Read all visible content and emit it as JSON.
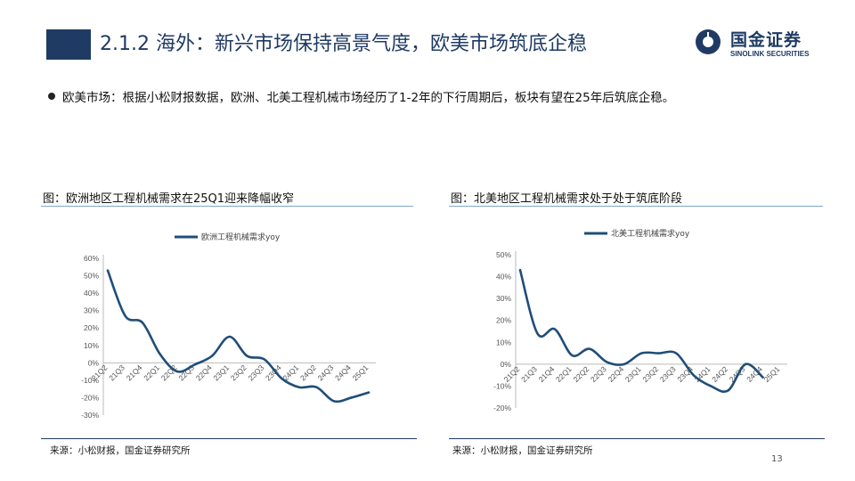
{
  "header": {
    "title": "2.1.2 海外：新兴市场保持高景气度，欧美市场筑底企稳",
    "logo_cn": "国金证券",
    "logo_en": "SINOLINK SECURITIES"
  },
  "bullet": {
    "text": "欧美市场：根据小松财报数据，欧洲、北美工程机械市场经历了1-2年的下行周期后，板块有望在25年后筑底企稳。"
  },
  "figures": [
    {
      "title": "图：欧洲地区工程机械需求在25Q1迎来降幅收窄",
      "source": "来源：小松财报，国金证券研究所"
    },
    {
      "title": "图：北美地区工程机械需求处于处于筑底阶段",
      "source": "来源：小松财报，国金证券研究所"
    }
  ],
  "page_number": "13",
  "colors": {
    "line": "#1f4e79",
    "brand": "#1f3b63"
  },
  "chart_data": [
    {
      "type": "line",
      "categories": [
        "21Q2",
        "21Q3",
        "21Q4",
        "22Q1",
        "22Q2",
        "22Q3",
        "22Q4",
        "23Q1",
        "23Q2",
        "23Q3",
        "23Q4",
        "24Q1",
        "24Q2",
        "24Q3",
        "24Q4",
        "25Q1"
      ],
      "series": [
        {
          "name": "欧洲工程机械需求yoy",
          "values": [
            53,
            27,
            23,
            5,
            -5,
            -1,
            4,
            15,
            4,
            2,
            -9,
            -14,
            -14,
            -22,
            -20,
            -17
          ]
        }
      ],
      "ylim": [
        -30,
        60
      ],
      "yticks": [
        "60%",
        "50%",
        "40%",
        "30%",
        "20%",
        "10%",
        "0%",
        "-10%",
        "-20%",
        "-30%"
      ],
      "legend": "top",
      "grid": false
    },
    {
      "type": "line",
      "categories": [
        "21Q2",
        "21Q3",
        "21Q4",
        "22Q1",
        "22Q2",
        "22Q3",
        "22Q4",
        "23Q1",
        "23Q2",
        "23Q3",
        "23Q4",
        "24Q1",
        "24Q2",
        "24Q3",
        "24Q4",
        "25Q1"
      ],
      "series": [
        {
          "name": "北美工程机械需求yoy",
          "values": [
            43,
            14,
            16,
            4,
            7,
            1,
            0,
            5,
            5,
            5,
            -5,
            -10,
            -12,
            0,
            -6,
            null
          ]
        }
      ],
      "ylim": [
        -20,
        50
      ],
      "yticks": [
        "50%",
        "40%",
        "30%",
        "20%",
        "10%",
        "0%",
        "-10%",
        "-20%"
      ],
      "legend": "top",
      "grid": false
    }
  ]
}
